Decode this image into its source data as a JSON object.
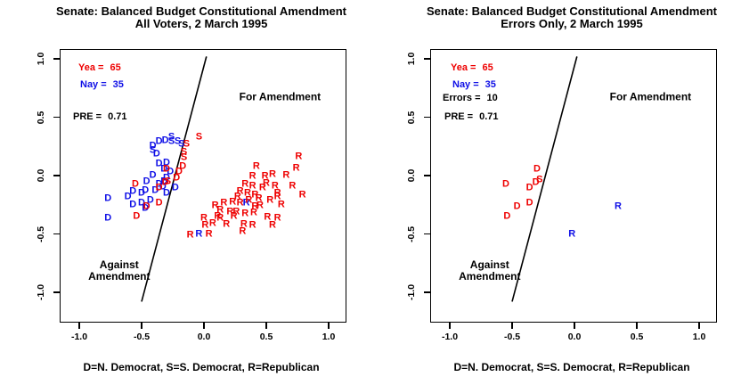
{
  "palette": {
    "yea": "#EE0000",
    "nay": "#0F0FE6",
    "line": "#000000"
  },
  "chart_data": [
    {
      "type": "scatter",
      "title": "Senate: Balanced Budget Constitutional Amendment",
      "subtitle": "All Voters, 2 March 1995",
      "xlim": [
        -1.15,
        1.15
      ],
      "ylim": [
        -1.27,
        1.08
      ],
      "xticks": [
        -1.0,
        -0.5,
        0.0,
        0.5,
        1.0
      ],
      "xtick_labels": [
        "-1.0",
        "-0.5",
        "0.0",
        "0.5",
        "1.0"
      ],
      "yticks": [
        1.0,
        0.5,
        0.0,
        -0.5,
        -1.0
      ],
      "ytick_labels": [
        "1.0",
        "0.5",
        "0.0",
        "-0.5",
        "-1.0"
      ],
      "grid": false,
      "stats": {
        "yea_label": "Yea =",
        "yea": "65",
        "nay_label": "Nay =",
        "nay": "35",
        "pre_label": "PRE =",
        "pre": "0.71"
      },
      "cutting_line": {
        "x1": -0.5,
        "y1": -1.08,
        "x2": 0.02,
        "y2": 1.02
      },
      "region_labels": [
        {
          "text": "For Amendment",
          "x": 0.61,
          "y": 0.67
        },
        {
          "text": "Against\nAmendment",
          "x": -0.68,
          "y": -0.82
        }
      ],
      "legend_note": "D=N. Democrat, S=S. Democrat, R=Republican",
      "points": [
        [
          "D",
          "nay",
          -0.36,
          0.29
        ],
        [
          "D",
          "nay",
          -0.31,
          0.3
        ],
        [
          "D",
          "nay",
          -0.41,
          0.25
        ],
        [
          "D",
          "nay",
          -0.38,
          0.18
        ],
        [
          "D",
          "nay",
          -0.3,
          0.11
        ],
        [
          "D",
          "nay",
          -0.27,
          0.03
        ],
        [
          "D",
          "nay",
          -0.36,
          0.1
        ],
        [
          "D",
          "nay",
          -0.32,
          0.05
        ],
        [
          "D",
          "nay",
          -0.41,
          0.0
        ],
        [
          "D",
          "nay",
          -0.3,
          -0.02
        ],
        [
          "D",
          "nay",
          -0.46,
          -0.05
        ],
        [
          "D",
          "nay",
          -0.33,
          -0.1
        ],
        [
          "D",
          "nay",
          -0.23,
          -0.11
        ],
        [
          "D",
          "nay",
          -0.39,
          -0.13
        ],
        [
          "D",
          "nay",
          -0.57,
          -0.14
        ],
        [
          "D",
          "nay",
          -0.5,
          -0.15
        ],
        [
          "D",
          "nay",
          -0.47,
          -0.13
        ],
        [
          "D",
          "nay",
          -0.43,
          -0.21
        ],
        [
          "D",
          "nay",
          -0.5,
          -0.24
        ],
        [
          "D",
          "nay",
          -0.57,
          -0.25
        ],
        [
          "D",
          "nay",
          -0.47,
          -0.28
        ],
        [
          "D",
          "nay",
          -0.36,
          -0.08
        ],
        [
          "D",
          "nay",
          -0.32,
          -0.05
        ],
        [
          "D",
          "nay",
          -0.3,
          -0.15
        ],
        [
          "D",
          "nay",
          -0.77,
          -0.2
        ],
        [
          "D",
          "nay",
          -0.77,
          -0.37
        ],
        [
          "D",
          "nay",
          -0.61,
          -0.18
        ],
        [
          "D",
          "nay",
          -0.46,
          -0.27
        ],
        [
          "S",
          "nay",
          -0.26,
          0.33
        ],
        [
          "S",
          "nay",
          -0.26,
          0.29
        ],
        [
          "S",
          "nay",
          -0.21,
          0.29
        ],
        [
          "S",
          "nay",
          -0.18,
          0.27
        ],
        [
          "S",
          "nay",
          -0.41,
          0.21
        ],
        [
          "R",
          "nay",
          0.34,
          -0.24
        ],
        [
          "R",
          "nay",
          -0.04,
          -0.5
        ],
        [
          "S",
          "yea",
          -0.04,
          0.33
        ],
        [
          "S",
          "yea",
          -0.14,
          0.27
        ],
        [
          "S",
          "yea",
          -0.16,
          0.2
        ],
        [
          "S",
          "yea",
          -0.16,
          0.15
        ],
        [
          "S",
          "yea",
          -0.29,
          -0.05
        ],
        [
          "D",
          "yea",
          -0.3,
          0.05
        ],
        [
          "D",
          "yea",
          -0.55,
          -0.08
        ],
        [
          "D",
          "yea",
          -0.36,
          -0.11
        ],
        [
          "D",
          "yea",
          -0.36,
          -0.24
        ],
        [
          "D",
          "yea",
          -0.46,
          -0.27
        ],
        [
          "D",
          "yea",
          -0.54,
          -0.35
        ],
        [
          "D",
          "yea",
          -0.31,
          -0.06
        ],
        [
          "D",
          "yea",
          -0.17,
          0.08
        ],
        [
          "D",
          "yea",
          -0.2,
          0.03
        ],
        [
          "D",
          "yea",
          -0.22,
          -0.02
        ],
        [
          "R",
          "yea",
          0.42,
          0.08
        ],
        [
          "R",
          "yea",
          0.76,
          0.16
        ],
        [
          "R",
          "yea",
          0.74,
          0.06
        ],
        [
          "R",
          "yea",
          0.39,
          -0.01
        ],
        [
          "R",
          "yea",
          0.49,
          -0.01
        ],
        [
          "R",
          "yea",
          0.55,
          0.01
        ],
        [
          "R",
          "yea",
          0.33,
          -0.08
        ],
        [
          "R",
          "yea",
          0.39,
          -0.09
        ],
        [
          "R",
          "yea",
          0.57,
          -0.09
        ],
        [
          "R",
          "yea",
          0.71,
          -0.09
        ],
        [
          "R",
          "yea",
          0.29,
          -0.14
        ],
        [
          "R",
          "yea",
          0.35,
          -0.15
        ],
        [
          "R",
          "yea",
          0.41,
          -0.17
        ],
        [
          "R",
          "yea",
          0.79,
          -0.17
        ],
        [
          "R",
          "yea",
          0.16,
          -0.24
        ],
        [
          "R",
          "yea",
          0.23,
          -0.23
        ],
        [
          "R",
          "yea",
          0.29,
          -0.24
        ],
        [
          "R",
          "yea",
          0.41,
          -0.27
        ],
        [
          "R",
          "yea",
          0.53,
          -0.21
        ],
        [
          "R",
          "yea",
          0.59,
          -0.18
        ],
        [
          "R",
          "yea",
          0.21,
          -0.31
        ],
        [
          "R",
          "yea",
          0.26,
          -0.31
        ],
        [
          "R",
          "yea",
          0.33,
          -0.33
        ],
        [
          "R",
          "yea",
          0.4,
          -0.32
        ],
        [
          "R",
          "yea",
          0.0,
          -0.37
        ],
        [
          "R",
          "yea",
          0.13,
          -0.37
        ],
        [
          "R",
          "yea",
          0.24,
          -0.35
        ],
        [
          "R",
          "yea",
          0.01,
          -0.43
        ],
        [
          "R",
          "yea",
          0.31,
          -0.48
        ],
        [
          "R",
          "yea",
          0.39,
          -0.43
        ],
        [
          "R",
          "yea",
          0.55,
          -0.43
        ],
        [
          "R",
          "yea",
          0.59,
          -0.37
        ],
        [
          "R",
          "yea",
          0.59,
          -0.15
        ],
        [
          "R",
          "yea",
          -0.11,
          -0.51
        ],
        [
          "R",
          "yea",
          0.04,
          -0.5
        ],
        [
          "R",
          "yea",
          0.09,
          -0.26
        ],
        [
          "R",
          "yea",
          0.47,
          -0.11
        ],
        [
          "R",
          "yea",
          0.66,
          0.0
        ],
        [
          "R",
          "yea",
          0.44,
          -0.2
        ],
        [
          "R",
          "yea",
          0.51,
          -0.36
        ],
        [
          "R",
          "yea",
          0.11,
          -0.35
        ],
        [
          "R",
          "yea",
          0.18,
          -0.42
        ],
        [
          "R",
          "yea",
          0.32,
          -0.42
        ],
        [
          "R",
          "yea",
          0.13,
          -0.3
        ],
        [
          "R",
          "yea",
          0.07,
          -0.41
        ],
        [
          "R",
          "yea",
          0.36,
          -0.21
        ],
        [
          "R",
          "yea",
          0.45,
          -0.26
        ],
        [
          "R",
          "yea",
          0.5,
          -0.07
        ],
        [
          "R",
          "yea",
          0.27,
          -0.18
        ],
        [
          "R",
          "yea",
          0.62,
          -0.25
        ]
      ]
    },
    {
      "type": "scatter",
      "title": "Senate: Balanced Budget Constitutional Amendment",
      "subtitle": "Errors Only, 2 March 1995",
      "xlim": [
        -1.15,
        1.15
      ],
      "ylim": [
        -1.27,
        1.08
      ],
      "xticks": [
        -1.0,
        -0.5,
        0.0,
        0.5,
        1.0
      ],
      "xtick_labels": [
        "-1.0",
        "-0.5",
        "0.0",
        "0.5",
        "1.0"
      ],
      "yticks": [
        1.0,
        0.5,
        0.0,
        -0.5,
        -1.0
      ],
      "ytick_labels": [
        "1.0",
        "0.5",
        "0.0",
        "-0.5",
        "-1.0"
      ],
      "grid": false,
      "stats": {
        "yea_label": "Yea =",
        "yea": "65",
        "nay_label": "Nay =",
        "nay": "35",
        "errors_label": "Errors =",
        "errors": "10",
        "pre_label": "PRE =",
        "pre": "0.71"
      },
      "cutting_line": {
        "x1": -0.5,
        "y1": -1.08,
        "x2": 0.02,
        "y2": 1.02
      },
      "region_labels": [
        {
          "text": "For Amendment",
          "x": 0.61,
          "y": 0.67
        },
        {
          "text": "Against\nAmendment",
          "x": -0.68,
          "y": -0.82
        }
      ],
      "legend_note": "D=N. Democrat, S=S. Democrat, R=Republican",
      "points": [
        [
          "D",
          "yea",
          -0.3,
          0.05
        ],
        [
          "S",
          "yea",
          -0.28,
          -0.04
        ],
        [
          "D",
          "yea",
          -0.55,
          -0.08
        ],
        [
          "D",
          "yea",
          -0.36,
          -0.11
        ],
        [
          "D",
          "yea",
          -0.31,
          -0.06
        ],
        [
          "D",
          "yea",
          -0.36,
          -0.24
        ],
        [
          "D",
          "yea",
          -0.46,
          -0.27
        ],
        [
          "D",
          "yea",
          -0.54,
          -0.35
        ],
        [
          "R",
          "nay",
          0.35,
          -0.27
        ],
        [
          "R",
          "nay",
          -0.02,
          -0.5
        ]
      ]
    }
  ]
}
